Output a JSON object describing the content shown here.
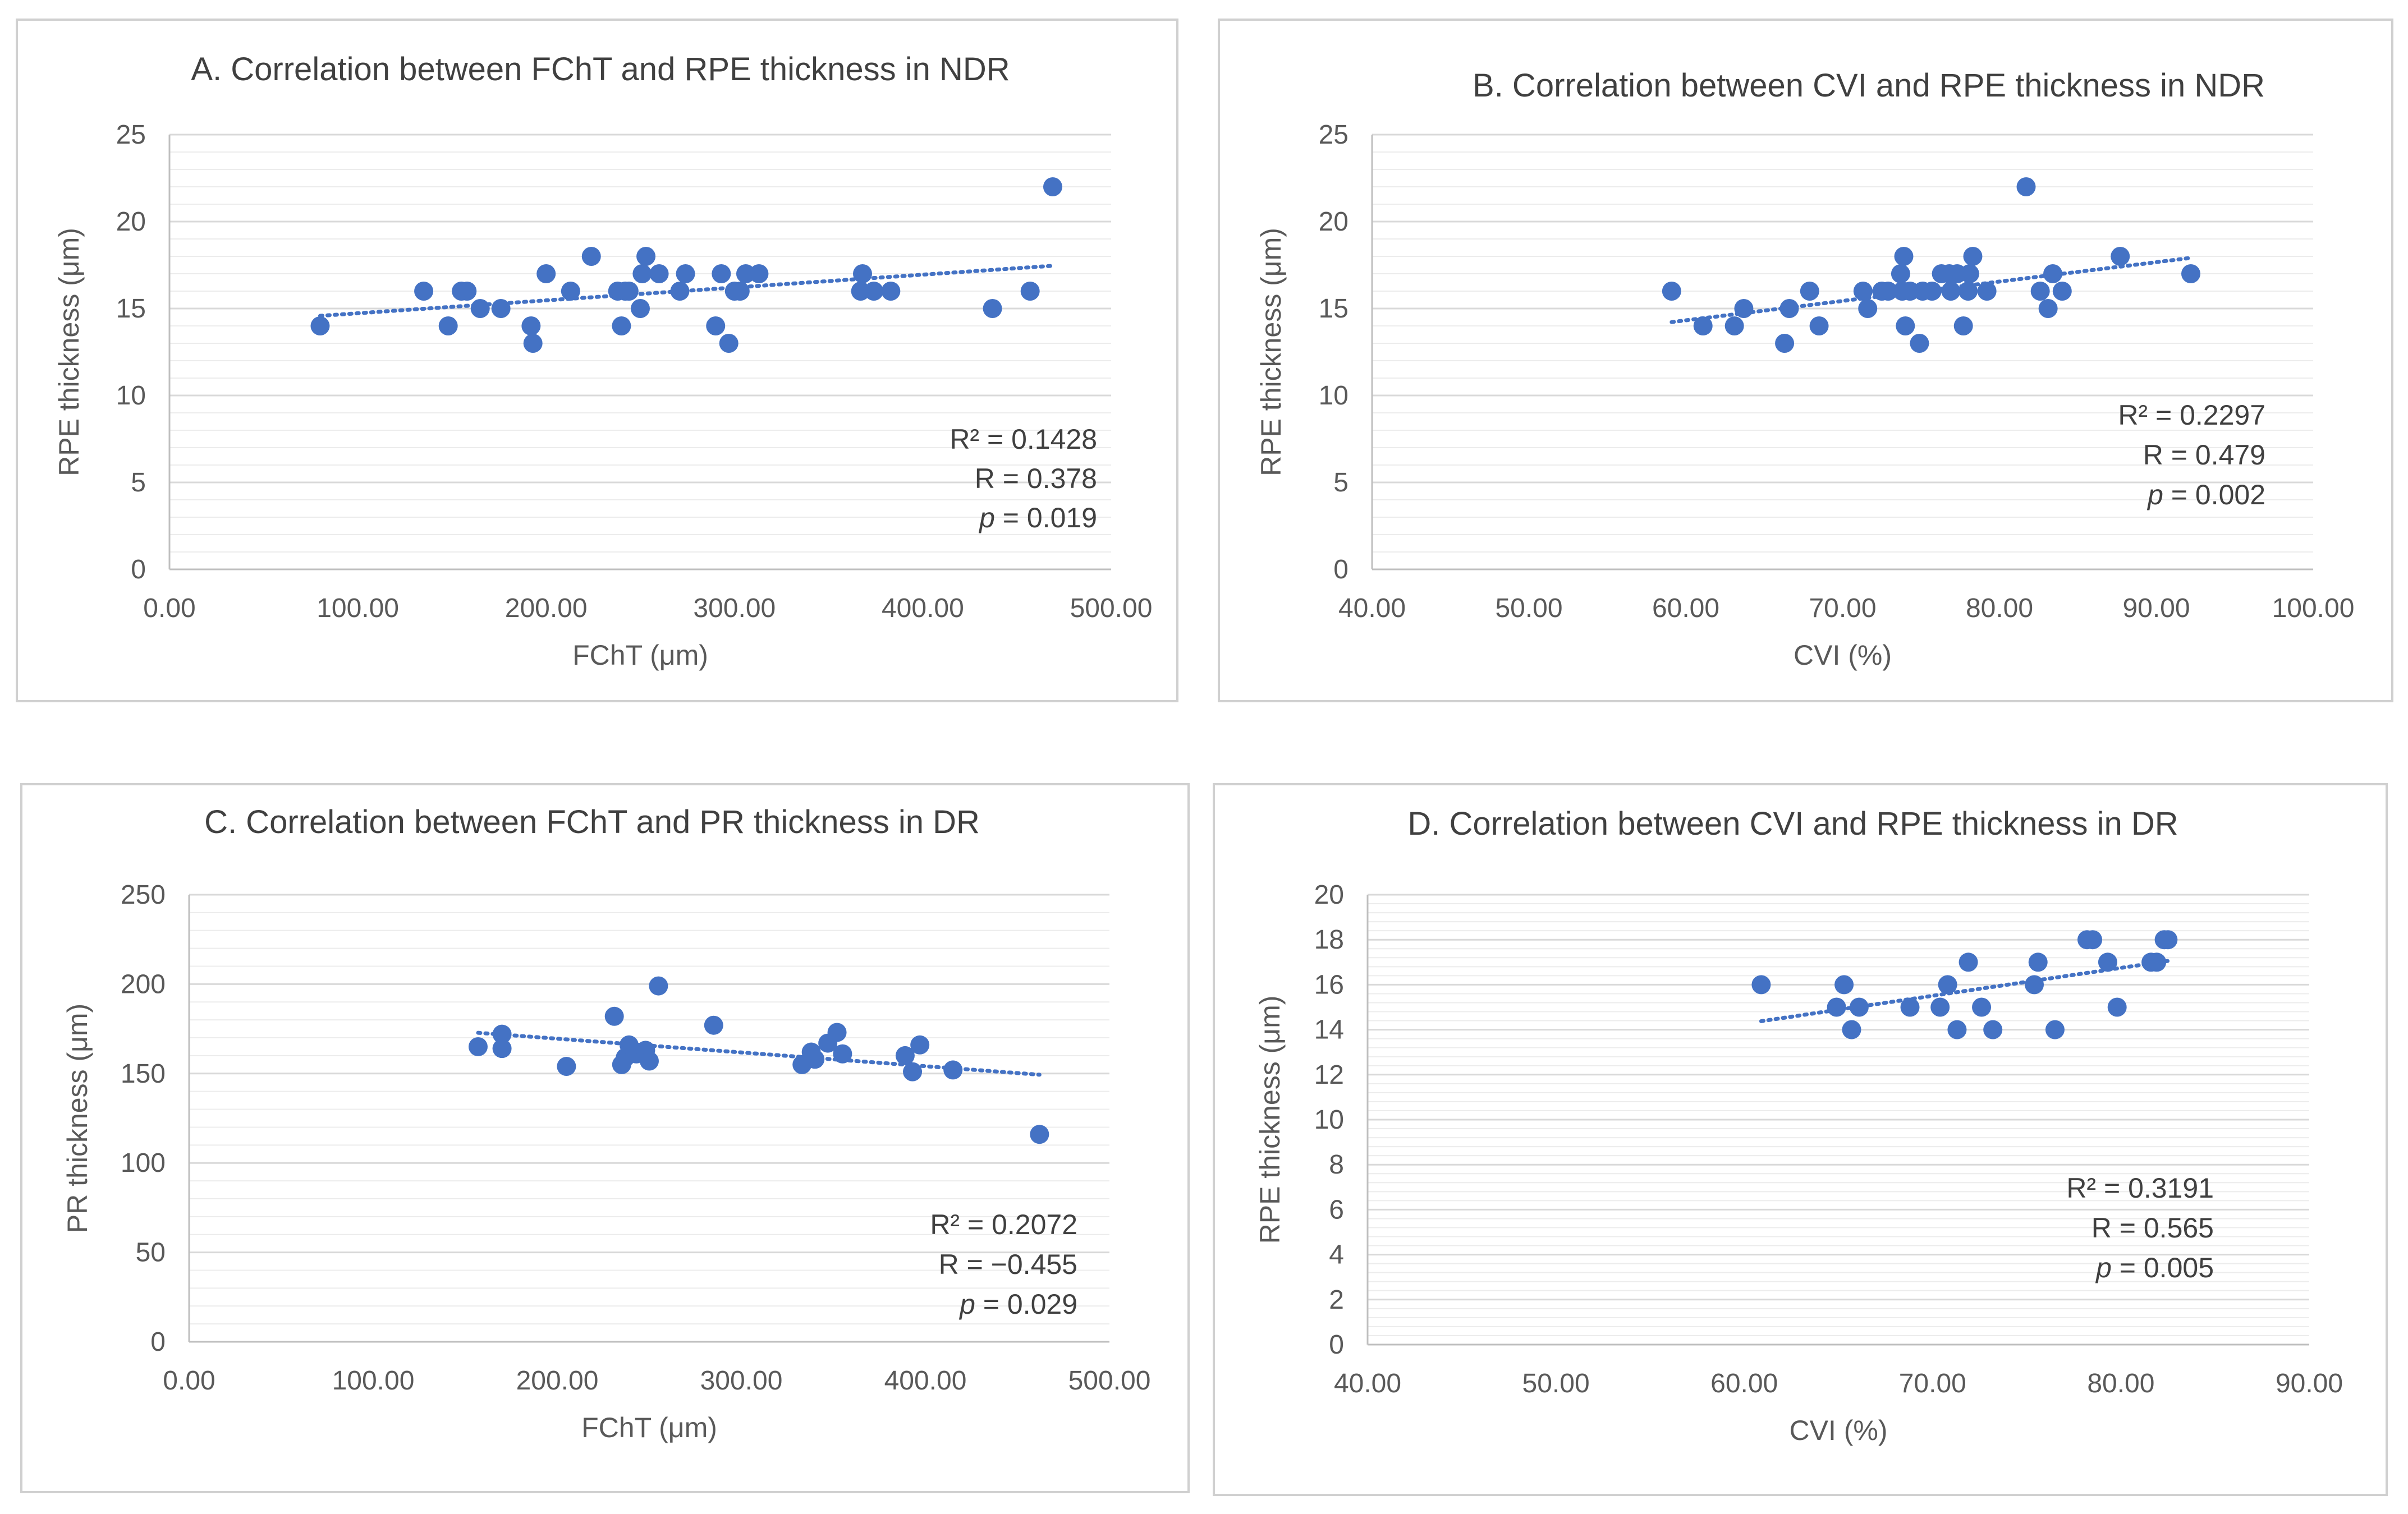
{
  "chart_data": [
    {
      "type": "scatter",
      "title": "A. Correlation between FChT and RPE thickness in NDR",
      "xlabel": "FChT (μm)",
      "ylabel": "RPE thickness (μm)",
      "xlim": [
        0,
        500
      ],
      "ylim": [
        0,
        25
      ],
      "xticks": [
        "0.00",
        "100.00",
        "200.00",
        "300.00",
        "400.00",
        "500.00"
      ],
      "yticks": [
        "0",
        "5",
        "10",
        "15",
        "20",
        "25"
      ],
      "grid": true,
      "trendline": true,
      "annotations": [
        "R² = 0.1428",
        "R = 0.378",
        "p = 0.019"
      ],
      "points": [
        {
          "x": 80,
          "y": 14
        },
        {
          "x": 135,
          "y": 16
        },
        {
          "x": 148,
          "y": 14
        },
        {
          "x": 155,
          "y": 16
        },
        {
          "x": 158,
          "y": 16
        },
        {
          "x": 165,
          "y": 15
        },
        {
          "x": 176,
          "y": 15
        },
        {
          "x": 192,
          "y": 14
        },
        {
          "x": 193,
          "y": 13
        },
        {
          "x": 200,
          "y": 17
        },
        {
          "x": 213,
          "y": 16
        },
        {
          "x": 224,
          "y": 18
        },
        {
          "x": 238,
          "y": 16
        },
        {
          "x": 240,
          "y": 14
        },
        {
          "x": 242,
          "y": 16
        },
        {
          "x": 244,
          "y": 16
        },
        {
          "x": 250,
          "y": 15
        },
        {
          "x": 251,
          "y": 17
        },
        {
          "x": 253,
          "y": 18
        },
        {
          "x": 260,
          "y": 17
        },
        {
          "x": 271,
          "y": 16
        },
        {
          "x": 274,
          "y": 17
        },
        {
          "x": 290,
          "y": 14
        },
        {
          "x": 293,
          "y": 17
        },
        {
          "x": 297,
          "y": 13
        },
        {
          "x": 300,
          "y": 16
        },
        {
          "x": 303,
          "y": 16
        },
        {
          "x": 306,
          "y": 17
        },
        {
          "x": 313,
          "y": 17
        },
        {
          "x": 367,
          "y": 16
        },
        {
          "x": 368,
          "y": 17
        },
        {
          "x": 374,
          "y": 16
        },
        {
          "x": 383,
          "y": 16
        },
        {
          "x": 437,
          "y": 15
        },
        {
          "x": 457,
          "y": 16
        },
        {
          "x": 469,
          "y": 22
        }
      ]
    },
    {
      "type": "scatter",
      "title": "B. Correlation between CVI and RPE thickness in NDR",
      "xlabel": "CVI (%)",
      "ylabel": "RPE thickness (μm)",
      "xlim": [
        40,
        100
      ],
      "ylim": [
        0,
        25
      ],
      "xticks": [
        "40.00",
        "50.00",
        "60.00",
        "70.00",
        "80.00",
        "90.00",
        "100.00"
      ],
      "yticks": [
        "0",
        "5",
        "10",
        "15",
        "20",
        "25"
      ],
      "grid": true,
      "trendline": true,
      "annotations": [
        "R² = 0.2297",
        "R = 0.479",
        "p = 0.002"
      ],
      "points": [
        {
          "x": 59.1,
          "y": 16
        },
        {
          "x": 61.1,
          "y": 14
        },
        {
          "x": 63.1,
          "y": 14
        },
        {
          "x": 63.7,
          "y": 15
        },
        {
          "x": 66.3,
          "y": 13
        },
        {
          "x": 66.6,
          "y": 15
        },
        {
          "x": 67.9,
          "y": 16
        },
        {
          "x": 68.5,
          "y": 14
        },
        {
          "x": 71.3,
          "y": 16
        },
        {
          "x": 71.6,
          "y": 15
        },
        {
          "x": 72.5,
          "y": 16
        },
        {
          "x": 72.9,
          "y": 16
        },
        {
          "x": 73.7,
          "y": 17
        },
        {
          "x": 73.8,
          "y": 16
        },
        {
          "x": 73.9,
          "y": 18
        },
        {
          "x": 74.0,
          "y": 14
        },
        {
          "x": 74.3,
          "y": 16
        },
        {
          "x": 74.9,
          "y": 13
        },
        {
          "x": 75.1,
          "y": 16
        },
        {
          "x": 75.7,
          "y": 16
        },
        {
          "x": 76.3,
          "y": 17
        },
        {
          "x": 76.8,
          "y": 17
        },
        {
          "x": 76.9,
          "y": 16
        },
        {
          "x": 77.3,
          "y": 17
        },
        {
          "x": 77.7,
          "y": 14
        },
        {
          "x": 78.0,
          "y": 16
        },
        {
          "x": 78.1,
          "y": 17
        },
        {
          "x": 78.3,
          "y": 18
        },
        {
          "x": 79.2,
          "y": 16
        },
        {
          "x": 81.7,
          "y": 22
        },
        {
          "x": 82.6,
          "y": 16
        },
        {
          "x": 83.1,
          "y": 15
        },
        {
          "x": 83.4,
          "y": 17
        },
        {
          "x": 84.0,
          "y": 16
        },
        {
          "x": 87.7,
          "y": 18
        },
        {
          "x": 92.2,
          "y": 17
        }
      ]
    },
    {
      "type": "scatter",
      "title": "C. Correlation between FChT and PR thickness in DR",
      "xlabel": "FChT (μm)",
      "ylabel": "PR thickness (μm)",
      "xlim": [
        0,
        500
      ],
      "ylim": [
        0,
        250
      ],
      "xticks": [
        "0.00",
        "100.00",
        "200.00",
        "300.00",
        "400.00",
        "500.00"
      ],
      "yticks": [
        "0",
        "50",
        "100",
        "150",
        "200",
        "250"
      ],
      "grid": true,
      "trendline": true,
      "annotations": [
        "R² = 0.2072",
        "R = −0.455",
        "p = 0.029"
      ],
      "points": [
        {
          "x": 157,
          "y": 165
        },
        {
          "x": 170,
          "y": 172
        },
        {
          "x": 170,
          "y": 164
        },
        {
          "x": 205,
          "y": 154
        },
        {
          "x": 231,
          "y": 182
        },
        {
          "x": 235,
          "y": 155
        },
        {
          "x": 237,
          "y": 159
        },
        {
          "x": 239,
          "y": 166
        },
        {
          "x": 243,
          "y": 161
        },
        {
          "x": 248,
          "y": 163
        },
        {
          "x": 250,
          "y": 157
        },
        {
          "x": 255,
          "y": 199
        },
        {
          "x": 285,
          "y": 177
        },
        {
          "x": 333,
          "y": 155
        },
        {
          "x": 338,
          "y": 162
        },
        {
          "x": 340,
          "y": 158
        },
        {
          "x": 347,
          "y": 167
        },
        {
          "x": 352,
          "y": 173
        },
        {
          "x": 355,
          "y": 161
        },
        {
          "x": 389,
          "y": 160
        },
        {
          "x": 393,
          "y": 151
        },
        {
          "x": 397,
          "y": 166
        },
        {
          "x": 415,
          "y": 152
        },
        {
          "x": 462,
          "y": 116
        }
      ]
    },
    {
      "type": "scatter",
      "title": "D. Correlation between CVI and RPE thickness in  DR",
      "xlabel": "CVI (%)",
      "ylabel": "RPE thickness (μm)",
      "xlim": [
        40,
        90
      ],
      "ylim": [
        0,
        20
      ],
      "xticks": [
        "40.00",
        "50.00",
        "60.00",
        "70.00",
        "80.00",
        "90.00"
      ],
      "yticks": [
        "0",
        "2",
        "4",
        "6",
        "8",
        "10",
        "12",
        "14",
        "16",
        "18",
        "20"
      ],
      "grid": true,
      "trendline": true,
      "annotations": [
        "R² = 0.3191",
        "R = 0.565",
        "p = 0.005"
      ],
      "points": [
        {
          "x": 60.9,
          "y": 16
        },
        {
          "x": 64.9,
          "y": 15
        },
        {
          "x": 65.3,
          "y": 16
        },
        {
          "x": 65.7,
          "y": 14
        },
        {
          "x": 66.1,
          "y": 15
        },
        {
          "x": 68.8,
          "y": 15
        },
        {
          "x": 70.4,
          "y": 15
        },
        {
          "x": 70.8,
          "y": 16
        },
        {
          "x": 71.3,
          "y": 14
        },
        {
          "x": 71.9,
          "y": 17
        },
        {
          "x": 72.6,
          "y": 15
        },
        {
          "x": 73.2,
          "y": 14
        },
        {
          "x": 75.4,
          "y": 16
        },
        {
          "x": 75.6,
          "y": 17
        },
        {
          "x": 76.5,
          "y": 14
        },
        {
          "x": 78.2,
          "y": 18
        },
        {
          "x": 78.5,
          "y": 18
        },
        {
          "x": 79.3,
          "y": 17
        },
        {
          "x": 79.8,
          "y": 15
        },
        {
          "x": 81.6,
          "y": 17
        },
        {
          "x": 81.9,
          "y": 17
        },
        {
          "x": 82.3,
          "y": 18
        },
        {
          "x": 82.5,
          "y": 18
        }
      ]
    }
  ]
}
